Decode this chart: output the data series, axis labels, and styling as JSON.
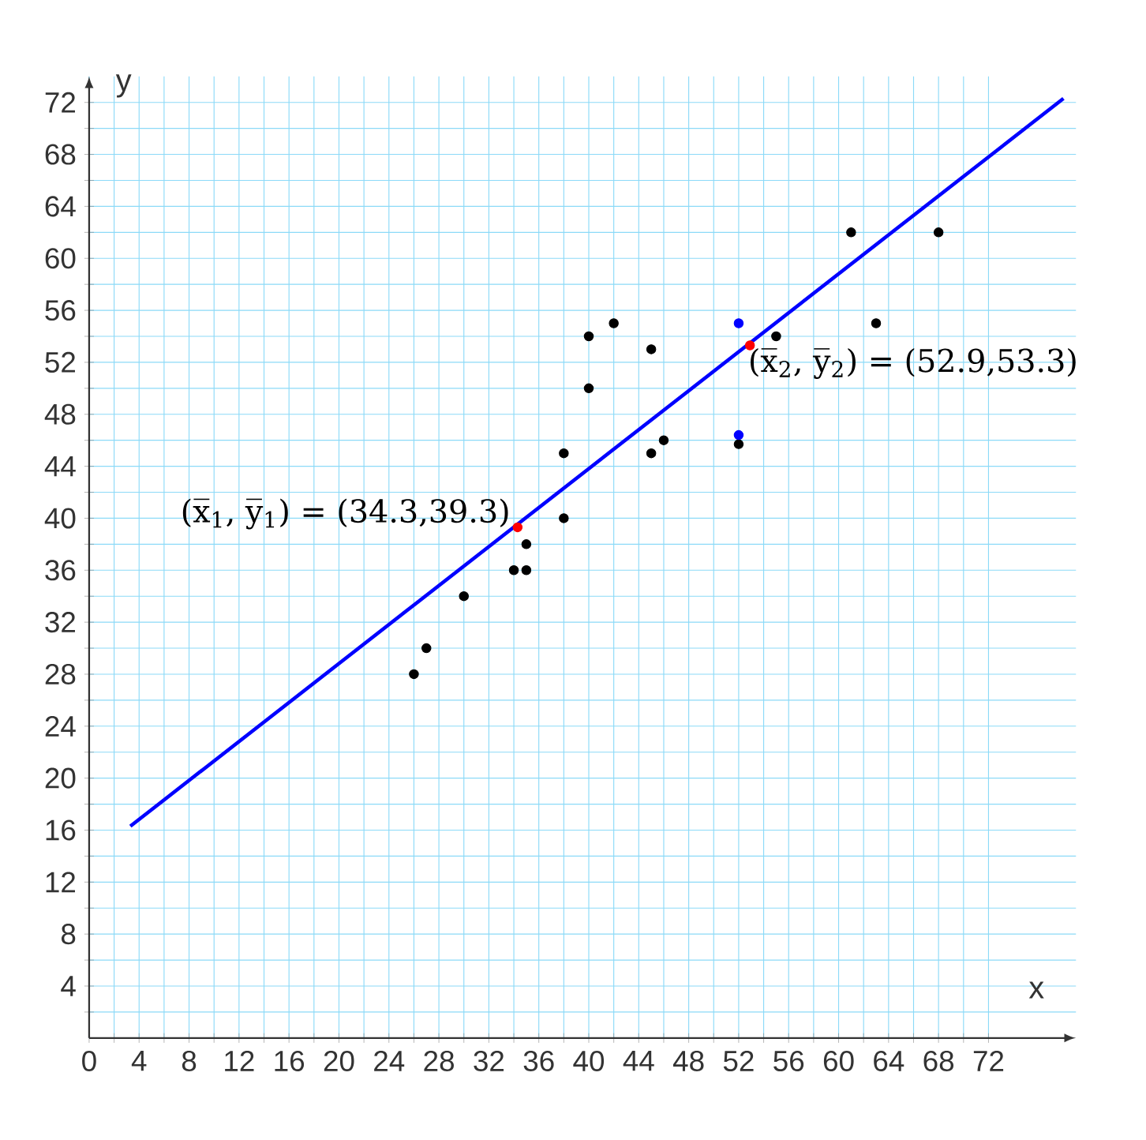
{
  "chart_data": {
    "type": "scatter",
    "xlabel": "x",
    "ylabel": "y",
    "xlim": [
      0,
      79
    ],
    "ylim": [
      0,
      74
    ],
    "xticks": [
      0,
      {
        "value": 2,
        "label": null
      },
      4,
      {
        "value": 6,
        "label": null
      },
      8,
      {
        "value": 10,
        "label": null
      },
      12,
      {
        "value": 14,
        "label": null
      },
      16,
      {
        "value": 18,
        "label": null
      },
      20,
      {
        "value": 22,
        "label": null
      },
      24,
      {
        "value": 26,
        "label": null
      },
      28,
      {
        "value": 30,
        "label": null
      },
      32,
      {
        "value": 34,
        "label": null
      },
      36,
      {
        "value": 38,
        "label": null
      },
      40,
      {
        "value": 42,
        "label": null
      },
      44,
      {
        "value": 46,
        "label": null
      },
      48,
      {
        "value": 50,
        "label": null
      },
      52,
      {
        "value": 54,
        "label": null
      },
      56,
      {
        "value": 58,
        "label": null
      },
      60,
      {
        "value": 62,
        "label": null
      },
      64,
      {
        "value": 66,
        "label": null
      },
      68,
      {
        "value": 70,
        "label": null
      },
      72
    ],
    "yticks": [
      {
        "value": 2,
        "label": null
      },
      4,
      {
        "value": 6,
        "label": null
      },
      8,
      {
        "value": 10,
        "label": null
      },
      12,
      {
        "value": 14,
        "label": null
      },
      16,
      {
        "value": 18,
        "label": null
      },
      20,
      {
        "value": 22,
        "label": null
      },
      24,
      {
        "value": 26,
        "label": null
      },
      28,
      {
        "value": 30,
        "label": null
      },
      32,
      {
        "value": 34,
        "label": null
      },
      36,
      {
        "value": 38,
        "label": null
      },
      40,
      {
        "value": 42,
        "label": null
      },
      44,
      {
        "value": 46,
        "label": null
      },
      48,
      {
        "value": 50,
        "label": null
      },
      52,
      {
        "value": 54,
        "label": null
      },
      56,
      {
        "value": 58,
        "label": null
      },
      60,
      {
        "value": 62,
        "label": null
      },
      64,
      {
        "value": 66,
        "label": null
      },
      68,
      {
        "value": 70,
        "label": null
      },
      72
    ],
    "grid": true,
    "marker": "circle",
    "series": [
      {
        "color": "#000000",
        "x": [
          26,
          27,
          30,
          34,
          35,
          35,
          38,
          38,
          40,
          40,
          42,
          45,
          45,
          46,
          52,
          55,
          61,
          63,
          68
        ],
        "values": [
          28,
          30,
          34,
          36,
          36,
          38,
          40,
          45,
          50,
          54,
          55,
          53,
          45,
          46,
          45.7,
          54,
          62,
          55,
          62
        ]
      },
      {
        "color": "#0000ff",
        "x": [
          52,
          52
        ],
        "values": [
          55,
          46.4
        ]
      },
      {
        "type": "line",
        "color": "#0000ff",
        "marker": "none",
        "x": [
          3.3,
          78
        ],
        "values": [
          16.3,
          72.3
        ]
      },
      {
        "color": "#ff0000",
        "x": [
          34.3,
          52.9
        ],
        "values": [
          39.3,
          53.3
        ]
      }
    ],
    "annotations": [
      {
        "text": "(x̅$_{1}$, y̅$_{1}$) = (34.3,39.3)",
        "x": 34.3,
        "y": 39.3
      },
      {
        "text": "(x̅$_{2}$, y̅$_{2}$) = (52.9,53.3)",
        "x": 52.9,
        "y": 53.3
      }
    ]
  }
}
